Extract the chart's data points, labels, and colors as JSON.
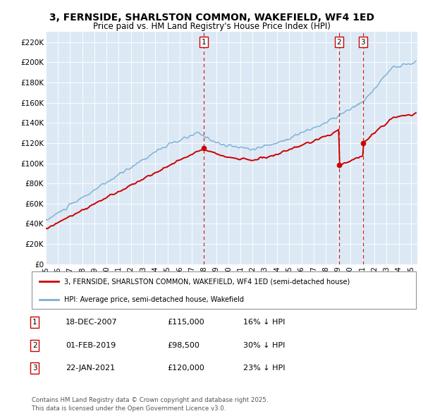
{
  "title": "3, FERNSIDE, SHARLSTON COMMON, WAKEFIELD, WF4 1ED",
  "subtitle": "Price paid vs. HM Land Registry's House Price Index (HPI)",
  "background_color": "#dce9f5",
  "fig_bg_color": "#ffffff",
  "ylim": [
    0,
    230000
  ],
  "yticks": [
    0,
    20000,
    40000,
    60000,
    80000,
    100000,
    120000,
    140000,
    160000,
    180000,
    200000,
    220000
  ],
  "ytick_labels": [
    "£0",
    "£20K",
    "£40K",
    "£60K",
    "£80K",
    "£100K",
    "£120K",
    "£140K",
    "£160K",
    "£180K",
    "£200K",
    "£220K"
  ],
  "red_color": "#cc0000",
  "blue_color": "#7bafd4",
  "marker_color": "#cc0000",
  "vline_color": "#cc0000",
  "transactions": [
    {
      "num": 1,
      "date": "18-DEC-2007",
      "price": "£115,000",
      "hpi": "16% ↓ HPI",
      "x_year": 2007.96
    },
    {
      "num": 2,
      "date": "01-FEB-2019",
      "price": "£98,500",
      "hpi": "30% ↓ HPI",
      "x_year": 2019.08
    },
    {
      "num": 3,
      "date": "22-JAN-2021",
      "price": "£120,000",
      "hpi": "23% ↓ HPI",
      "x_year": 2021.06
    }
  ],
  "legend_entries": [
    "3, FERNSIDE, SHARLSTON COMMON, WAKEFIELD, WF4 1ED (semi-detached house)",
    "HPI: Average price, semi-detached house, Wakefield"
  ],
  "footer": "Contains HM Land Registry data © Crown copyright and database right 2025.\nThis data is licensed under the Open Government Licence v3.0.",
  "xmin": 1995.0,
  "xmax": 2025.5
}
